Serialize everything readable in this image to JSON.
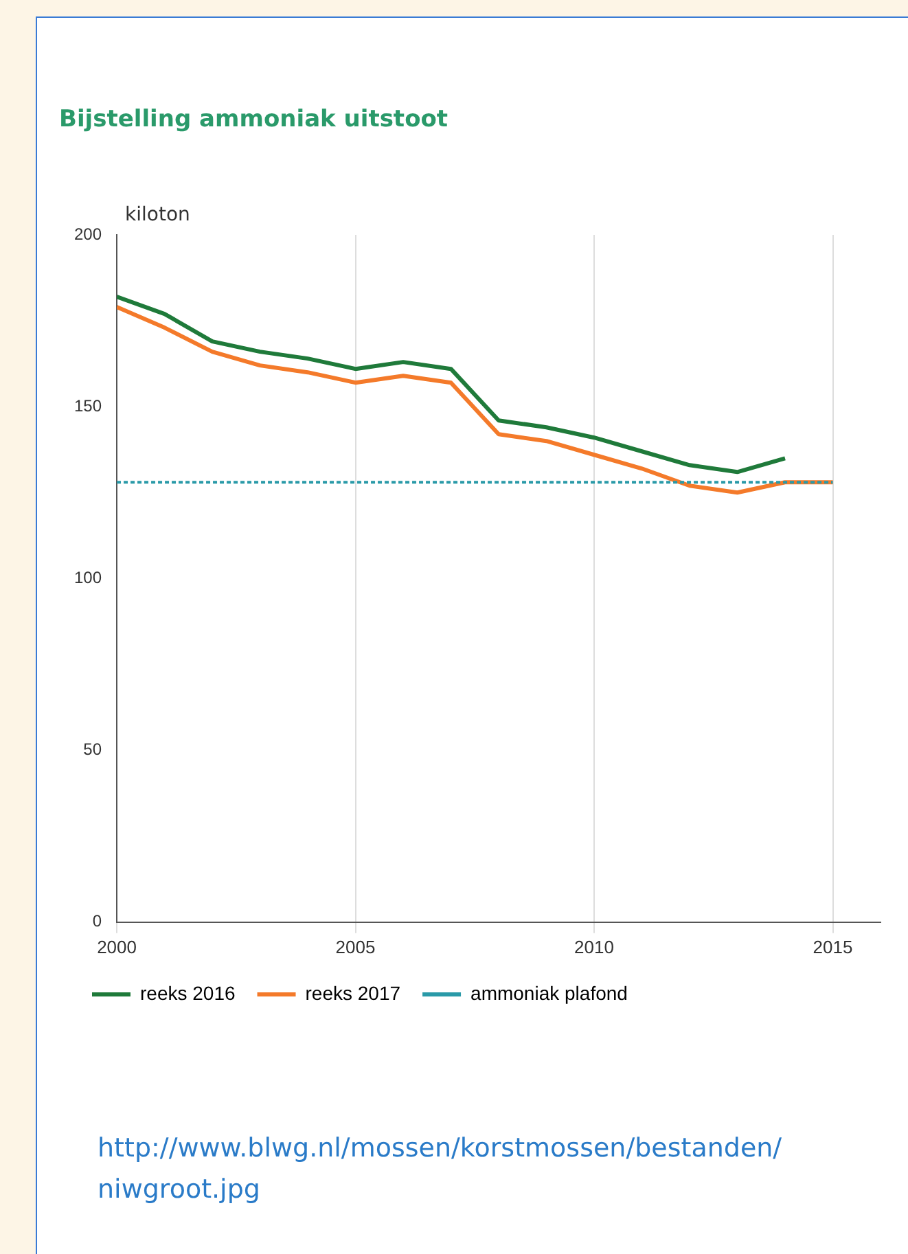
{
  "chart_data": {
    "type": "line",
    "title": "Bijstelling ammoniak uitstoot",
    "ylabel": "kiloton",
    "x": [
      2000,
      2001,
      2002,
      2003,
      2004,
      2005,
      2006,
      2007,
      2008,
      2009,
      2010,
      2011,
      2012,
      2013,
      2014
    ],
    "series": [
      {
        "name": "reeks 2016",
        "color": "#1f7a3a",
        "values": [
          182,
          177,
          169,
          166,
          164,
          161,
          163,
          161,
          146,
          144,
          141,
          137,
          133,
          131,
          135
        ]
      },
      {
        "name": "reeks 2017",
        "color": "#f47a2a",
        "x": [
          2000,
          2001,
          2002,
          2003,
          2004,
          2005,
          2006,
          2007,
          2008,
          2009,
          2010,
          2011,
          2012,
          2013,
          2014,
          2015
        ],
        "values": [
          179,
          173,
          166,
          162,
          160,
          157,
          159,
          157,
          142,
          140,
          136,
          132,
          127,
          125,
          128,
          128
        ]
      },
      {
        "name": "ammoniak plafond",
        "color": "#2a9aa8",
        "x": [
          2000,
          2015
        ],
        "values": [
          128,
          128
        ],
        "line_style": "dotted"
      }
    ],
    "xlim": [
      2000,
      2016
    ],
    "xticks": [
      2000,
      2005,
      2010,
      2015
    ],
    "ylim": [
      0,
      200
    ],
    "yticks": [
      0,
      50,
      100,
      150,
      200
    ],
    "grid": "x",
    "legend": "bottom left",
    "marker": "none",
    "line_style": "solid",
    "annotations": [
      "http://www.blwg.nl/mossen/korstmossen/bestanden/niwgroot.jpg"
    ]
  }
}
